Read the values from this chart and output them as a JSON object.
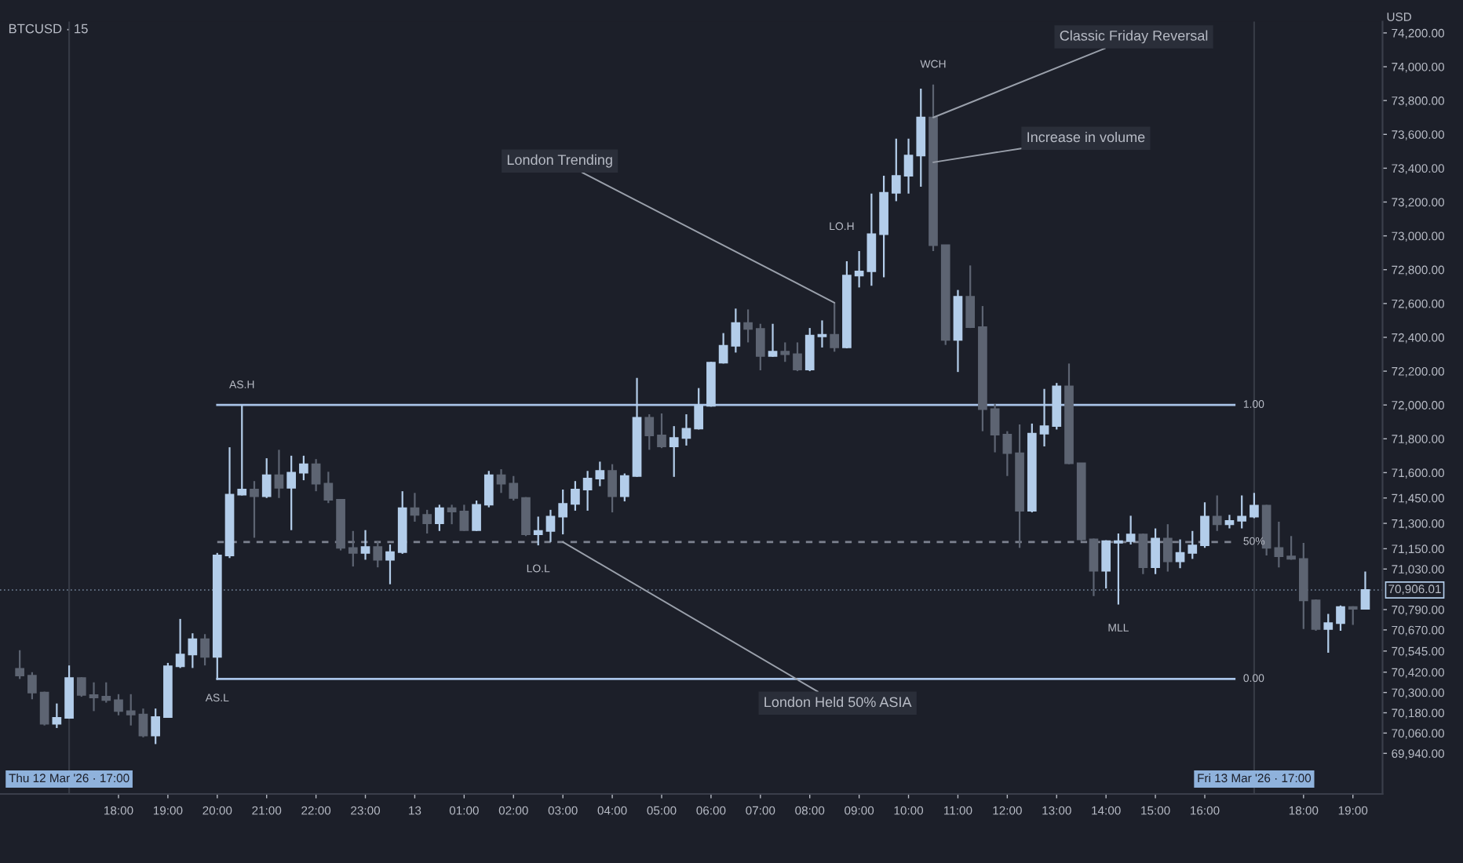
{
  "chart_data": {
    "type": "candlestick",
    "title": "BTCUSD · 15",
    "ylabel": "USD",
    "colors": [
      "#5d6472",
      "#5d6472",
      "#5d6472",
      "#b3cdea",
      "#b3cdea",
      "#5d6472",
      "#5d6472",
      "#5d6472",
      "#5d6472",
      "#5d6472",
      "#5d6472",
      "#b3cdea",
      "#b3cdea",
      "#b3cdea",
      "#b3cdea",
      "#5d6472",
      "#b3cdea",
      "#b3cdea",
      "#b3cdea",
      "#5d6472",
      "#b3cdea",
      "#5d6472",
      "#b3cdea",
      "#b3cdea",
      "#5d6472",
      "#5d6472",
      "#5d6472",
      "#5d6472",
      "#b3cdea",
      "#5d6472",
      "#b3cdea",
      "#b3cdea",
      "#5d6472",
      "#5d6472",
      "#b3cdea",
      "#5d6472",
      "#5d6472",
      "#b3cdea",
      "#b3cdea",
      "#5d6472",
      "#5d6472",
      "#5d6472",
      "#b3cdea",
      "#b3cdea",
      "#b3cdea",
      "#b3cdea",
      "#b3cdea",
      "#b3cdea",
      "#5d6472",
      "#b3cdea",
      "#b3cdea",
      "#5d6472",
      "#5d6472",
      "#b3cdea",
      "#b3cdea",
      "#b3cdea",
      "#b3cdea",
      "#b3cdea",
      "#b3cdea",
      "#5d6472",
      "#5d6472",
      "#b3cdea",
      "#5d6472",
      "#5d6472",
      "#b3cdea",
      "#b3cdea",
      "#5d6472",
      "#b3cdea",
      "#b3cdea",
      "#b3cdea",
      "#b3cdea",
      "#b3cdea",
      "#b3cdea",
      "#b3cdea",
      "#5d6472",
      "#5d6472",
      "#b3cdea",
      "#5d6472",
      "#5d6472",
      "#5d6472",
      "#5d6472",
      "#5d6472",
      "#b3cdea",
      "#b3cdea",
      "#b3cdea",
      "#5d6472",
      "#5d6472",
      "#5d6472",
      "#b3cdea",
      "#b3cdea",
      "#b3cdea",
      "#5d6472",
      "#b3cdea",
      "#5d6472",
      "#b3cdea",
      "#b3cdea",
      "#b3cdea",
      "#5d6472",
      "#b3cdea",
      "#b3cdea",
      "#b3cdea",
      "#5d6472",
      "#5d6472",
      "#5d6472",
      "#5d6472",
      "#5d6472",
      "#b3cdea",
      "#b3cdea",
      "#5d6472",
      "#b3cdea"
    ],
    "x": [
      "2026-03-12T16:00",
      "2026-03-12T16:15",
      "2026-03-12T16:30",
      "2026-03-12T16:45",
      "2026-03-12T17:00",
      "2026-03-12T17:15",
      "2026-03-12T17:30",
      "2026-03-12T17:45",
      "2026-03-12T18:00",
      "2026-03-12T18:15",
      "2026-03-12T18:30",
      "2026-03-12T18:45",
      "2026-03-12T19:00",
      "2026-03-12T19:15",
      "2026-03-12T19:30",
      "2026-03-12T19:45",
      "2026-03-12T20:00",
      "2026-03-12T20:15",
      "2026-03-12T20:30",
      "2026-03-12T20:45",
      "2026-03-12T21:00",
      "2026-03-12T21:15",
      "2026-03-12T21:30",
      "2026-03-12T21:45",
      "2026-03-12T22:00",
      "2026-03-12T22:15",
      "2026-03-12T22:30",
      "2026-03-12T22:45",
      "2026-03-12T23:00",
      "2026-03-12T23:15",
      "2026-03-12T23:30",
      "2026-03-12T23:45",
      "2026-03-13T00:00",
      "2026-03-13T00:15",
      "2026-03-13T00:30",
      "2026-03-13T00:45",
      "2026-03-13T01:00",
      "2026-03-13T01:15",
      "2026-03-13T01:30",
      "2026-03-13T01:45",
      "2026-03-13T02:00",
      "2026-03-13T02:15",
      "2026-03-13T02:30",
      "2026-03-13T02:45",
      "2026-03-13T03:00",
      "2026-03-13T03:15",
      "2026-03-13T03:30",
      "2026-03-13T03:45",
      "2026-03-13T04:00",
      "2026-03-13T04:15",
      "2026-03-13T04:30",
      "2026-03-13T04:45",
      "2026-03-13T05:00",
      "2026-03-13T05:15",
      "2026-03-13T05:30",
      "2026-03-13T05:45",
      "2026-03-13T06:00",
      "2026-03-13T06:15",
      "2026-03-13T06:30",
      "2026-03-13T06:45",
      "2026-03-13T07:00",
      "2026-03-13T07:15",
      "2026-03-13T07:30",
      "2026-03-13T07:45",
      "2026-03-13T08:00",
      "2026-03-13T08:15",
      "2026-03-13T08:30",
      "2026-03-13T08:45",
      "2026-03-13T09:00",
      "2026-03-13T09:15",
      "2026-03-13T09:30",
      "2026-03-13T09:45",
      "2026-03-13T10:00",
      "2026-03-13T10:15",
      "2026-03-13T10:30",
      "2026-03-13T10:45",
      "2026-03-13T11:00",
      "2026-03-13T11:15",
      "2026-03-13T11:30",
      "2026-03-13T11:45",
      "2026-03-13T12:00",
      "2026-03-13T12:15",
      "2026-03-13T12:30",
      "2026-03-13T12:45",
      "2026-03-13T13:00",
      "2026-03-13T13:15",
      "2026-03-13T13:30",
      "2026-03-13T13:45",
      "2026-03-13T14:00",
      "2026-03-13T14:15",
      "2026-03-13T14:30",
      "2026-03-13T14:45",
      "2026-03-13T15:00",
      "2026-03-13T15:15",
      "2026-03-13T15:30",
      "2026-03-13T15:45",
      "2026-03-13T16:00",
      "2026-03-13T16:15",
      "2026-03-13T16:30",
      "2026-03-13T16:45",
      "2026-03-13T17:00",
      "2026-03-13T17:15",
      "2026-03-13T17:30",
      "2026-03-13T17:45",
      "2026-03-13T18:00",
      "2026-03-13T18:15",
      "2026-03-13T18:30",
      "2026-03-13T18:45",
      "2026-03-13T19:00",
      "2026-03-13T19:15"
    ],
    "ohlc": [
      [
        70440,
        70550,
        70380,
        70400
      ],
      [
        70400,
        70420,
        70260,
        70300
      ],
      [
        70300,
        70305,
        70105,
        70115
      ],
      [
        70115,
        70235,
        70090,
        70150
      ],
      [
        70150,
        70460,
        70145,
        70385
      ],
      [
        70385,
        70390,
        70275,
        70285
      ],
      [
        70285,
        70360,
        70190,
        70270
      ],
      [
        70275,
        70360,
        70240,
        70255
      ],
      [
        70255,
        70290,
        70165,
        70190
      ],
      [
        70190,
        70290,
        70105,
        70170
      ],
      [
        70170,
        70205,
        70035,
        70045
      ],
      [
        70045,
        70205,
        69995,
        70155
      ],
      [
        70155,
        70475,
        70150,
        70455
      ],
      [
        70455,
        70735,
        70445,
        70525
      ],
      [
        70525,
        70650,
        70445,
        70615
      ],
      [
        70615,
        70645,
        70460,
        70510
      ],
      [
        70510,
        71125,
        70375,
        71110
      ],
      [
        71110,
        71750,
        71095,
        71470
      ],
      [
        71470,
        72000,
        71465,
        71500
      ],
      [
        71500,
        71550,
        71215,
        71460
      ],
      [
        71460,
        71685,
        71450,
        71585
      ],
      [
        71585,
        71735,
        71450,
        71510
      ],
      [
        71510,
        71700,
        71260,
        71600
      ],
      [
        71600,
        71700,
        71555,
        71650
      ],
      [
        71650,
        71680,
        71490,
        71535
      ],
      [
        71535,
        71605,
        71420,
        71440
      ],
      [
        71440,
        71440,
        71140,
        71155
      ],
      [
        71155,
        71255,
        71045,
        71125
      ],
      [
        71125,
        71260,
        71085,
        71160
      ],
      [
        71160,
        71195,
        71040,
        71085
      ],
      [
        71085,
        71175,
        70940,
        71130
      ],
      [
        71130,
        71490,
        71120,
        71390
      ],
      [
        71390,
        71480,
        71310,
        71350
      ],
      [
        71350,
        71380,
        71240,
        71300
      ],
      [
        71300,
        71410,
        71255,
        71390
      ],
      [
        71390,
        71410,
        71295,
        71370
      ],
      [
        71370,
        71410,
        71255,
        71260
      ],
      [
        71260,
        71435,
        71255,
        71410
      ],
      [
        71410,
        71610,
        71395,
        71585
      ],
      [
        71585,
        71620,
        71480,
        71535
      ],
      [
        71535,
        71580,
        71435,
        71450
      ],
      [
        71450,
        71455,
        71225,
        71235
      ],
      [
        71235,
        71340,
        71170,
        71255
      ],
      [
        71255,
        71380,
        71190,
        71340
      ],
      [
        71340,
        71500,
        71235,
        71415
      ],
      [
        71415,
        71550,
        71375,
        71500
      ],
      [
        71500,
        71610,
        71375,
        71565
      ],
      [
        71565,
        71665,
        71520,
        71610
      ],
      [
        71610,
        71650,
        71365,
        71460
      ],
      [
        71460,
        71595,
        71430,
        71580
      ],
      [
        71580,
        72160,
        71575,
        71925
      ],
      [
        71925,
        71945,
        71735,
        71820
      ],
      [
        71820,
        71950,
        71745,
        71755
      ],
      [
        71755,
        71875,
        71575,
        71805
      ],
      [
        71805,
        71945,
        71760,
        71860
      ],
      [
        71860,
        72100,
        71855,
        71995
      ],
      [
        71995,
        72255,
        71990,
        72250
      ],
      [
        72250,
        72425,
        72245,
        72350
      ],
      [
        72350,
        72570,
        72310,
        72485
      ],
      [
        72485,
        72565,
        72370,
        72450
      ],
      [
        72450,
        72480,
        72205,
        72290
      ],
      [
        72290,
        72480,
        72285,
        72315
      ],
      [
        72315,
        72370,
        72255,
        72300
      ],
      [
        72300,
        72370,
        72200,
        72210
      ],
      [
        72210,
        72455,
        72200,
        72410
      ],
      [
        72405,
        72500,
        72340,
        72415
      ],
      [
        72415,
        72605,
        72315,
        72340
      ],
      [
        72340,
        72850,
        72335,
        72765
      ],
      [
        72765,
        72910,
        72695,
        72790
      ],
      [
        72790,
        73250,
        72705,
        73010
      ],
      [
        73010,
        73355,
        72755,
        73255
      ],
      [
        73255,
        73575,
        73205,
        73355
      ],
      [
        73355,
        73575,
        73250,
        73475
      ],
      [
        73475,
        73870,
        73290,
        73700
      ],
      [
        73700,
        73895,
        72910,
        72945
      ],
      [
        72945,
        72945,
        72355,
        72385
      ],
      [
        72385,
        72680,
        72195,
        72640
      ],
      [
        72640,
        72825,
        72455,
        72460
      ],
      [
        72460,
        72585,
        71845,
        71975
      ],
      [
        71975,
        72005,
        71720,
        71825
      ],
      [
        71825,
        71845,
        71580,
        71715
      ],
      [
        71715,
        71885,
        71155,
        71375
      ],
      [
        71375,
        71890,
        71365,
        71830
      ],
      [
        71830,
        72095,
        71755,
        71875
      ],
      [
        71875,
        72130,
        71855,
        72110
      ],
      [
        72110,
        72245,
        71650,
        71655
      ],
      [
        71655,
        71655,
        71195,
        71205
      ],
      [
        71205,
        71210,
        70870,
        71020
      ],
      [
        71020,
        71200,
        70915,
        71195
      ],
      [
        71185,
        71240,
        70820,
        71195
      ],
      [
        71195,
        71345,
        71175,
        71235
      ],
      [
        71235,
        71240,
        71000,
        71040
      ],
      [
        71040,
        71270,
        71000,
        71210
      ],
      [
        71210,
        71295,
        71015,
        71075
      ],
      [
        71075,
        71205,
        71035,
        71125
      ],
      [
        71125,
        71255,
        71090,
        71170
      ],
      [
        71170,
        71425,
        71155,
        71340
      ],
      [
        71340,
        71465,
        71255,
        71295
      ],
      [
        71295,
        71350,
        71270,
        71315
      ],
      [
        71315,
        71465,
        71270,
        71340
      ],
      [
        71340,
        71480,
        71330,
        71405
      ],
      [
        71405,
        71410,
        71110,
        71155
      ],
      [
        71155,
        71310,
        71040,
        71105
      ],
      [
        71105,
        71225,
        71085,
        71090
      ],
      [
        71090,
        71185,
        70675,
        70845
      ],
      [
        70845,
        70850,
        70665,
        70675
      ],
      [
        70675,
        70765,
        70535,
        70710
      ],
      [
        70710,
        70815,
        70665,
        70805
      ],
      [
        70805,
        70810,
        70700,
        70795
      ],
      [
        70795,
        71015,
        70790,
        70906
      ]
    ],
    "series": [
      {
        "type": "line",
        "x": [
          "2026-03-12T20:00",
          "2026-03-13T16:36"
        ],
        "values": [
          72000,
          72000
        ],
        "color": "#a9c4e8",
        "line_style": "solid"
      },
      {
        "type": "line",
        "x": [
          "2026-03-12T20:00",
          "2026-03-13T16:36"
        ],
        "values": [
          71190,
          71190
        ],
        "color": "#7d8290",
        "line_style": "dashed"
      },
      {
        "type": "line",
        "x": [
          "2026-03-12T20:00",
          "2026-03-13T16:36"
        ],
        "values": [
          70380,
          70380
        ],
        "color": "#a9c4e8",
        "line_style": "solid"
      }
    ],
    "xlim": [
      "2026-03-12T15:36",
      "2026-03-13T19:36"
    ],
    "ylim": [
      69700,
      74267
    ],
    "xticks": [
      {
        "value": "2026-03-12T18:00",
        "label": "18:00"
      },
      {
        "value": "2026-03-12T19:00",
        "label": "19:00"
      },
      {
        "value": "2026-03-12T20:00",
        "label": "20:00"
      },
      {
        "value": "2026-03-12T21:00",
        "label": "21:00"
      },
      {
        "value": "2026-03-12T22:00",
        "label": "22:00"
      },
      {
        "value": "2026-03-12T23:00",
        "label": "23:00"
      },
      {
        "value": "2026-03-13T00:00",
        "label": "13"
      },
      {
        "value": "2026-03-13T01:00",
        "label": "01:00"
      },
      {
        "value": "2026-03-13T02:00",
        "label": "02:00"
      },
      {
        "value": "2026-03-13T03:00",
        "label": "03:00"
      },
      {
        "value": "2026-03-13T04:00",
        "label": "04:00"
      },
      {
        "value": "2026-03-13T05:00",
        "label": "05:00"
      },
      {
        "value": "2026-03-13T06:00",
        "label": "06:00"
      },
      {
        "value": "2026-03-13T07:00",
        "label": "07:00"
      },
      {
        "value": "2026-03-13T08:00",
        "label": "08:00"
      },
      {
        "value": "2026-03-13T09:00",
        "label": "09:00"
      },
      {
        "value": "2026-03-13T10:00",
        "label": "10:00"
      },
      {
        "value": "2026-03-13T11:00",
        "label": "11:00"
      },
      {
        "value": "2026-03-13T12:00",
        "label": "12:00"
      },
      {
        "value": "2026-03-13T13:00",
        "label": "13:00"
      },
      {
        "value": "2026-03-13T14:00",
        "label": "14:00"
      },
      {
        "value": "2026-03-13T15:00",
        "label": "15:00"
      },
      {
        "value": "2026-03-13T16:00",
        "label": "16:00"
      },
      {
        "value": "2026-03-13T18:00",
        "label": "18:00"
      },
      {
        "value": "2026-03-13T19:00",
        "label": "19:00"
      }
    ],
    "yticks": [
      {
        "value": 74200,
        "label": "74,200.00"
      },
      {
        "value": 74000,
        "label": "74,000.00"
      },
      {
        "value": 73800,
        "label": "73,800.00"
      },
      {
        "value": 73600,
        "label": "73,600.00"
      },
      {
        "value": 73400,
        "label": "73,400.00"
      },
      {
        "value": 73200,
        "label": "73,200.00"
      },
      {
        "value": 73000,
        "label": "73,000.00"
      },
      {
        "value": 72800,
        "label": "72,800.00"
      },
      {
        "value": 72600,
        "label": "72,600.00"
      },
      {
        "value": 72400,
        "label": "72,400.00"
      },
      {
        "value": 72200,
        "label": "72,200.00"
      },
      {
        "value": 72000,
        "label": "72,000.00"
      },
      {
        "value": 71800,
        "label": "71,800.00"
      },
      {
        "value": 71600,
        "label": "71,600.00"
      },
      {
        "value": 71450,
        "label": "71,450.00"
      },
      {
        "value": 71300,
        "label": "71,300.00"
      },
      {
        "value": 71150,
        "label": "71,150.00"
      },
      {
        "value": 71030,
        "label": "71,030.00"
      },
      {
        "value": 70790,
        "label": "70,790.00"
      },
      {
        "value": 70670,
        "label": "70,670.00"
      },
      {
        "value": 70545,
        "label": "70,545.00"
      },
      {
        "value": 70420,
        "label": "70,420.00"
      },
      {
        "value": 70300,
        "label": "70,300.00"
      },
      {
        "value": 70180,
        "label": "70,180.00"
      },
      {
        "value": 70060,
        "label": "70,060.00"
      },
      {
        "value": 69940,
        "label": "69,940.00"
      }
    ],
    "ref_lines": [
      {
        "axis": "x",
        "value": "2026-03-12T17:00",
        "label": "Thu 12 Mar '26 · 17:00",
        "color": "#363a45"
      },
      {
        "axis": "x",
        "value": "2026-03-13T17:00",
        "label": "Fri 13 Mar '26 · 17:00",
        "color": "#363a45"
      },
      {
        "axis": "y",
        "value": 70906.01,
        "label": "70,906.01",
        "color": "#b3cdea",
        "line_style": "dotted"
      }
    ],
    "annotations": [
      {
        "text": "AS.H",
        "x": "2026-03-12T20:30",
        "y": 72000
      },
      {
        "text": "AS.L",
        "x": "2026-03-12T20:00",
        "y": 70380
      },
      {
        "text": "LO.L",
        "x": "2026-03-13T02:30",
        "y": 71170
      },
      {
        "text": "LO.H",
        "x": "2026-03-13T09:00",
        "y": 72910
      },
      {
        "text": "WCH",
        "x": "2026-03-13T10:30",
        "y": 73895
      },
      {
        "text": "MLL",
        "x": "2026-03-13T14:15",
        "y": 70820
      },
      {
        "text": "Classic Friday Reversal",
        "x": "2026-03-13T10:30",
        "y": 73700
      },
      {
        "text": "Increase in volume",
        "x": "2026-03-13T10:30",
        "y": 73435
      },
      {
        "text": "London Trending",
        "x": "2026-03-13T08:30",
        "y": 72605
      },
      {
        "text": "London Held 50% ASIA",
        "x": "2026-03-13T03:00",
        "y": 71190
      },
      {
        "text": "1.00",
        "x": "2026-03-13T16:36",
        "y": 72000
      },
      {
        "text": "50%",
        "x": "2026-03-13T16:36",
        "y": 71190
      },
      {
        "text": "0.00",
        "x": "2026-03-13T16:36",
        "y": 70380
      }
    ],
    "grid": false
  }
}
